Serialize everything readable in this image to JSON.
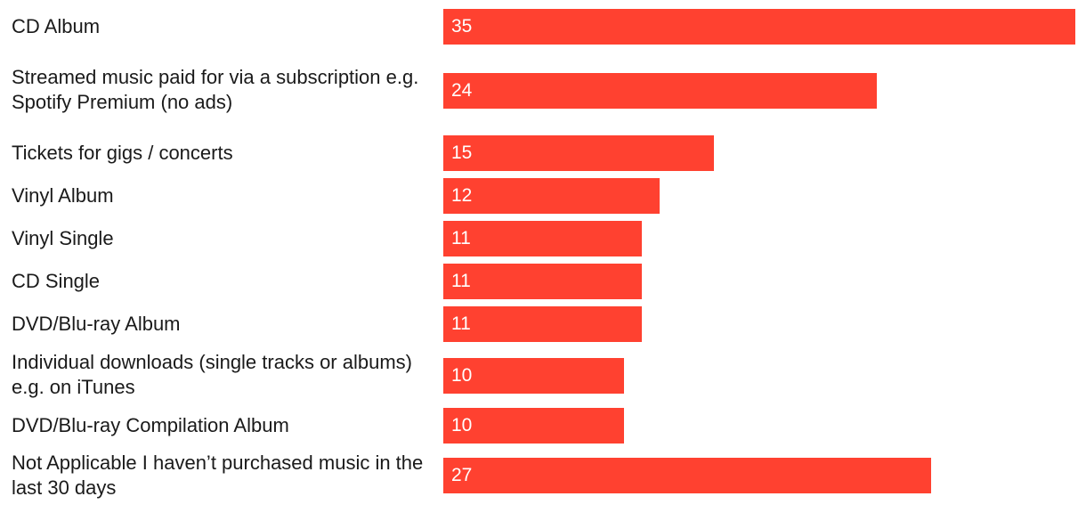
{
  "chart_data": {
    "type": "bar",
    "orientation": "horizontal",
    "categories": [
      "CD Album",
      "Streamed music paid for via a subscription e.g. Spotify Premium (no ads)",
      "Tickets for gigs / concerts",
      "Vinyl Album",
      "Vinyl Single",
      "CD Single",
      "DVD/Blu-ray Album",
      "Individual downloads (single tracks or albums) e.g. on iTunes",
      "DVD/Blu-ray Compilation Album",
      "Not Applicable I haven’t purchased music in the last 30 days"
    ],
    "values": [
      35,
      24,
      15,
      12,
      11,
      11,
      11,
      10,
      10,
      27
    ],
    "data_labels": [
      "35",
      "24",
      "15",
      "12",
      "11",
      "11",
      "11",
      "10",
      "10",
      "27"
    ],
    "xlim": [
      0,
      35
    ],
    "grid": false,
    "colors": {
      "bar": "#ff4130",
      "label_text": "#1a1a1a",
      "value_text": "#ffffff"
    }
  }
}
